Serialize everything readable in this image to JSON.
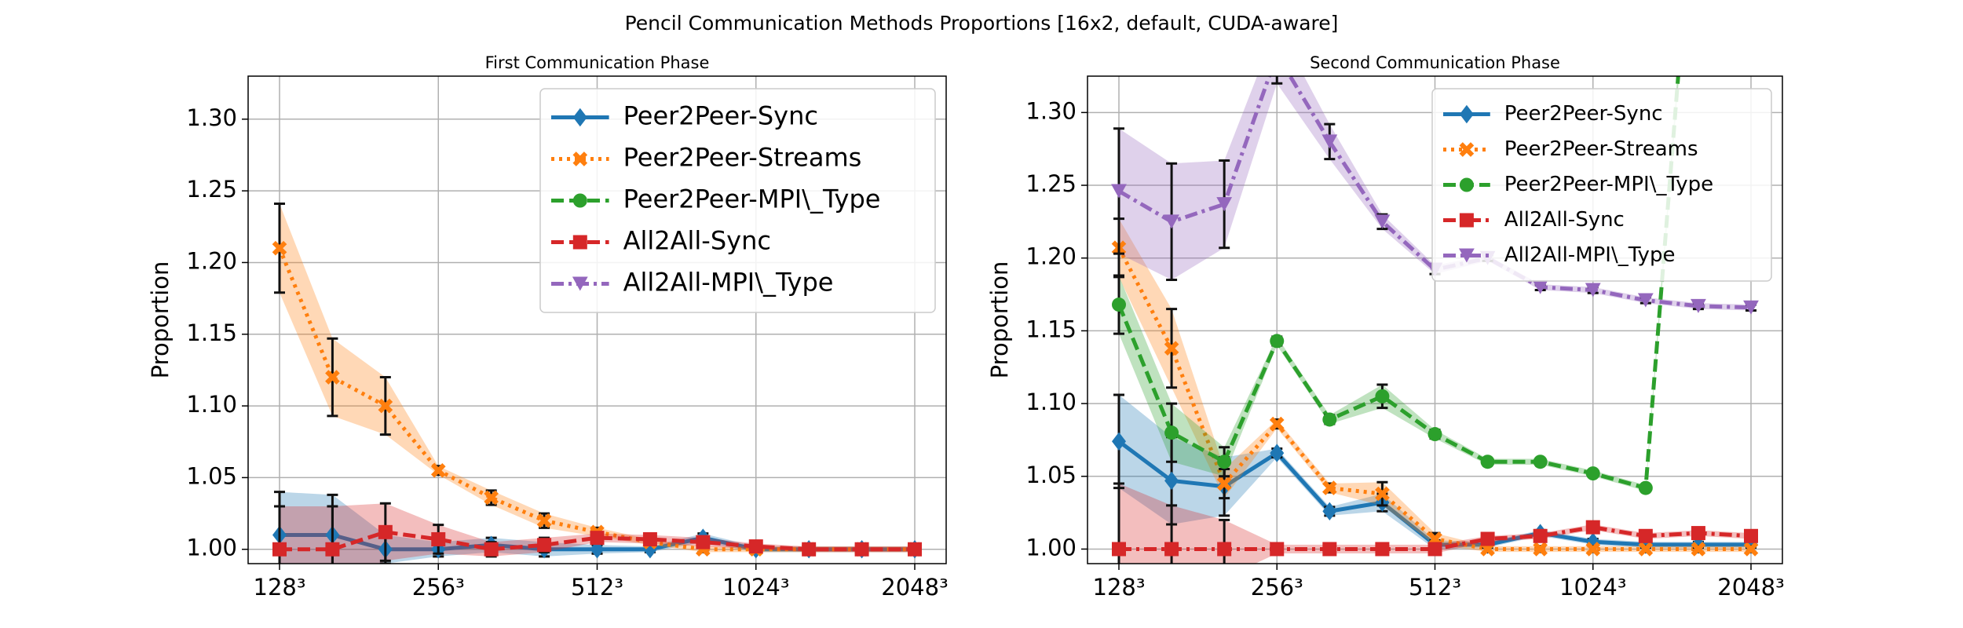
{
  "title": "Pencil Communication Methods Proportions [16x2, default, CUDA-aware]",
  "chart_data": [
    {
      "type": "line",
      "title": "First Communication Phase",
      "y_label": "Proportion",
      "categories": [
        "128³",
        null,
        null,
        "256³",
        null,
        null,
        "512³",
        null,
        null,
        "1024³",
        null,
        null,
        "2048³"
      ],
      "ylim": [
        0.99,
        1.33
      ],
      "yticks": [
        {
          "value": 1.0,
          "label": "1.00"
        },
        {
          "value": 1.05,
          "label": "1.05"
        },
        {
          "value": 1.1,
          "label": "1.10"
        },
        {
          "value": 1.15,
          "label": "1.15"
        },
        {
          "value": 1.2,
          "label": "1.20"
        },
        {
          "value": 1.25,
          "label": "1.25"
        },
        {
          "value": 1.3,
          "label": "1.30"
        }
      ],
      "grid": true,
      "legend": "upper right",
      "series": [
        {
          "name": "Peer2Peer-Sync",
          "color": "#1f77b4",
          "marker": "D",
          "dash": "solid",
          "values": [
            1.01,
            1.01,
            1.0,
            1.0,
            1.003,
            1.0,
            1.0,
            1.0,
            1.008,
            1.0,
            1.0,
            1.0,
            1.0
          ],
          "errors": [
            0.03,
            0.028,
            0.01,
            0.005,
            0.005,
            0.005,
            0.003,
            0.002,
            0.003,
            0.002,
            0.002,
            0.002,
            0.002
          ]
        },
        {
          "name": "Peer2Peer-Streams",
          "color": "#ff7f0e",
          "marker": "X",
          "dash": "dotted",
          "values": [
            1.21,
            1.12,
            1.1,
            1.055,
            1.036,
            1.02,
            1.012,
            1.005,
            1.0,
            1.0,
            1.0,
            1.0,
            1.0
          ],
          "errors": [
            0.031,
            0.027,
            0.02,
            0.003,
            0.005,
            0.005,
            0.003,
            0.002,
            0.002,
            0.002,
            0.002,
            0.002,
            0.002
          ]
        },
        {
          "name": "Peer2Peer-MPI\\_Type",
          "color": "#2ca02c",
          "marker": "o",
          "dash": "dashed",
          "values": [
            null,
            null,
            null,
            null,
            null,
            null,
            null,
            null,
            null,
            null,
            null,
            null,
            null
          ],
          "errors": [
            null,
            null,
            null,
            null,
            null,
            null,
            null,
            null,
            null,
            null,
            null,
            null,
            null
          ]
        },
        {
          "name": "All2All-Sync",
          "color": "#d62728",
          "marker": "s",
          "dash": "dashed",
          "values": [
            1.0,
            1.0,
            1.012,
            1.007,
            1.0,
            1.003,
            1.008,
            1.007,
            1.005,
            1.002,
            1.0,
            1.0,
            1.0
          ],
          "errors": [
            0.03,
            0.03,
            0.02,
            0.01,
            0.005,
            0.005,
            0.003,
            0.003,
            0.003,
            0.002,
            0.002,
            0.002,
            0.002
          ]
        },
        {
          "name": "All2All-MPI\\_Type",
          "color": "#9467bd",
          "marker": "v",
          "dash": "dashdot",
          "values": [
            null,
            null,
            null,
            null,
            null,
            null,
            null,
            null,
            null,
            null,
            null,
            null,
            null
          ],
          "errors": [
            null,
            null,
            null,
            null,
            null,
            null,
            null,
            null,
            null,
            null,
            null,
            null,
            null
          ]
        }
      ]
    },
    {
      "type": "line",
      "title": "Second Communication Phase",
      "y_label": "Proportion",
      "categories": [
        "128³",
        null,
        null,
        "256³",
        null,
        null,
        "512³",
        null,
        null,
        "1024³",
        null,
        null,
        "2048³"
      ],
      "ylim": [
        0.99,
        1.325
      ],
      "yticks": [
        {
          "value": 1.0,
          "label": "1.00"
        },
        {
          "value": 1.05,
          "label": "1.05"
        },
        {
          "value": 1.1,
          "label": "1.10"
        },
        {
          "value": 1.15,
          "label": "1.15"
        },
        {
          "value": 1.2,
          "label": "1.20"
        },
        {
          "value": 1.25,
          "label": "1.25"
        },
        {
          "value": 1.3,
          "label": "1.30"
        }
      ],
      "grid": true,
      "legend": "upper right",
      "series": [
        {
          "name": "Peer2Peer-Sync",
          "color": "#1f77b4",
          "marker": "D",
          "dash": "solid",
          "values": [
            1.074,
            1.047,
            1.043,
            1.066,
            1.026,
            1.032,
            1.003,
            1.003,
            1.011,
            1.005,
            1.003,
            1.003,
            1.003
          ],
          "errors": [
            0.032,
            0.03,
            0.02,
            0.003,
            0.003,
            0.006,
            0.003,
            0.002,
            0.002,
            0.002,
            0.002,
            0.002,
            0.002
          ]
        },
        {
          "name": "Peer2Peer-Streams",
          "color": "#ff7f0e",
          "marker": "X",
          "dash": "dotted",
          "values": [
            1.207,
            1.138,
            1.045,
            1.086,
            1.042,
            1.038,
            1.007,
            1.0,
            1.0,
            1.0,
            1.0,
            1.0,
            1.0
          ],
          "errors": [
            0.02,
            0.027,
            0.01,
            0.003,
            0.003,
            0.008,
            0.004,
            0.002,
            0.002,
            0.002,
            0.002,
            0.002,
            0.002
          ]
        },
        {
          "name": "Peer2Peer-MPI\\_Type",
          "color": "#2ca02c",
          "marker": "o",
          "dash": "dashed",
          "values": [
            1.168,
            1.08,
            1.06,
            1.143,
            1.089,
            1.105,
            1.079,
            1.06,
            1.06,
            1.052,
            1.042,
            1.5,
            null
          ],
          "errors": [
            0.02,
            0.02,
            0.01,
            0.003,
            0.003,
            0.008,
            0.003,
            0.002,
            0.002,
            0.002,
            0.002,
            0.01,
            null
          ]
        },
        {
          "name": "All2All-Sync",
          "color": "#d62728",
          "marker": "s",
          "dash": "dashdot",
          "values": [
            1.0,
            1.0,
            1.0,
            1.0,
            1.0,
            1.0,
            1.0,
            1.007,
            1.009,
            1.015,
            1.009,
            1.011,
            1.009
          ],
          "errors": [
            0.045,
            0.03,
            0.02,
            0.003,
            0.003,
            0.003,
            0.003,
            0.002,
            0.002,
            0.002,
            0.002,
            0.002,
            0.002
          ]
        },
        {
          "name": "All2All-MPI\\_Type",
          "color": "#9467bd",
          "marker": "v",
          "dash": "dashdot",
          "values": [
            1.246,
            1.225,
            1.237,
            1.34,
            1.28,
            1.225,
            1.192,
            1.2,
            1.18,
            1.178,
            1.171,
            1.167,
            1.166
          ],
          "errors": [
            0.043,
            0.04,
            0.03,
            0.02,
            0.012,
            0.005,
            0.003,
            0.002,
            0.002,
            0.002,
            0.002,
            0.002,
            0.002
          ]
        }
      ]
    }
  ]
}
